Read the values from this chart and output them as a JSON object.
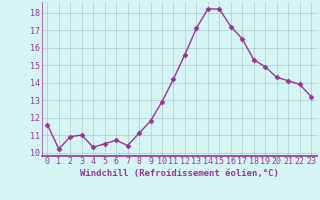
{
  "x": [
    0,
    1,
    2,
    3,
    4,
    5,
    6,
    7,
    8,
    9,
    10,
    11,
    12,
    13,
    14,
    15,
    16,
    17,
    18,
    19,
    20,
    21,
    22,
    23
  ],
  "y": [
    11.6,
    10.2,
    10.9,
    11.0,
    10.3,
    10.5,
    10.7,
    10.4,
    11.1,
    11.8,
    12.9,
    14.2,
    15.6,
    17.1,
    18.2,
    18.2,
    17.2,
    16.5,
    15.3,
    14.9,
    14.3,
    14.1,
    13.9,
    13.2
  ],
  "line_color": "#993399",
  "marker": "D",
  "marker_size": 2.5,
  "bg_color": "#d5f5f5",
  "grid_color": "#b0c8c8",
  "xlabel": "Windchill (Refroidissement éolien,°C)",
  "xlabel_color": "#993399",
  "tick_color": "#993399",
  "ylim": [
    9.8,
    18.6
  ],
  "xlim": [
    -0.5,
    23.5
  ],
  "yticks": [
    10,
    11,
    12,
    13,
    14,
    15,
    16,
    17,
    18
  ],
  "xticks": [
    0,
    1,
    2,
    3,
    4,
    5,
    6,
    7,
    8,
    9,
    10,
    11,
    12,
    13,
    14,
    15,
    16,
    17,
    18,
    19,
    20,
    21,
    22,
    23
  ],
  "tick_fontsize": 6.0,
  "xlabel_fontsize": 6.5
}
